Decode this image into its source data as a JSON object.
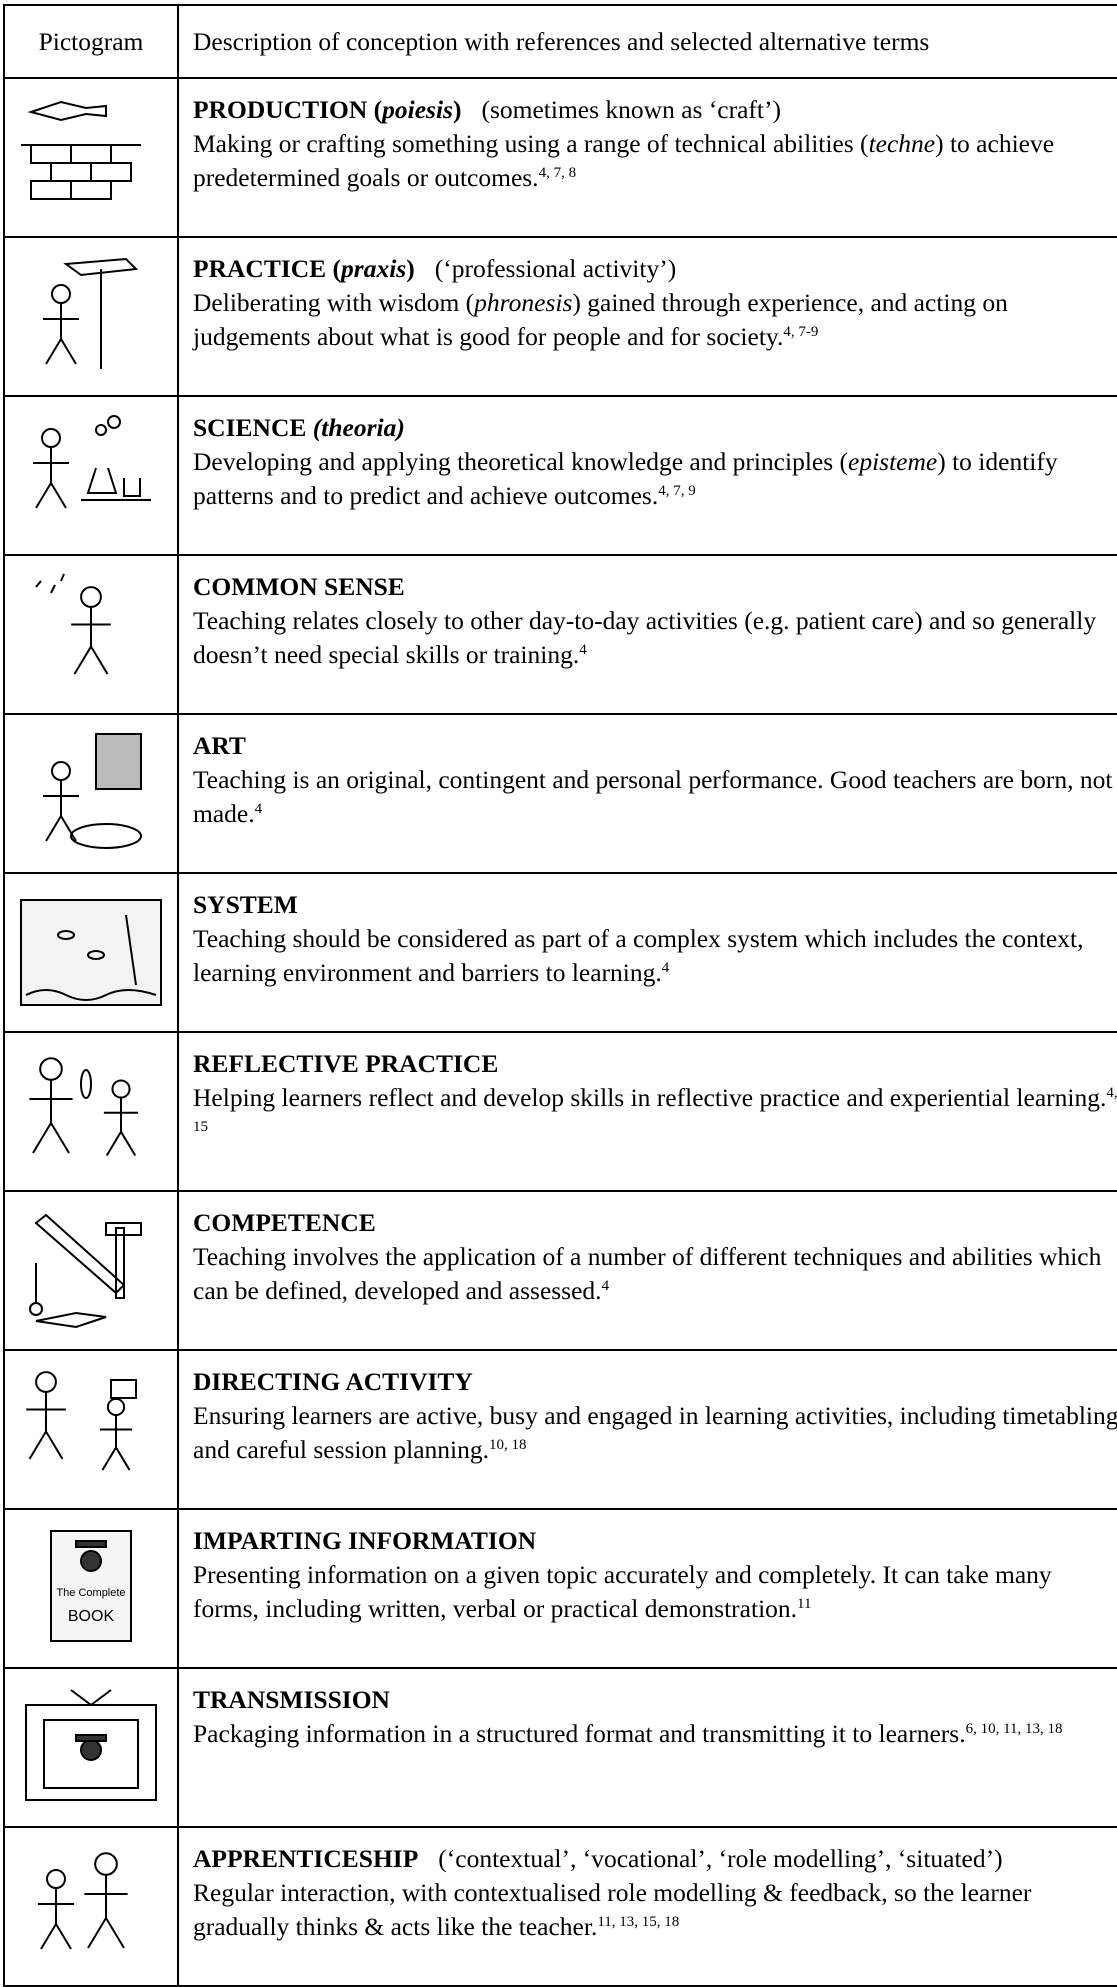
{
  "table": {
    "header": [
      "Pictogram",
      "Description of conception with references and selected alternative terms"
    ],
    "rows": [
      {
        "title": [
          {
            "text": "PRODUCTION ("
          },
          {
            "text": "poiesis",
            "italic": true
          },
          {
            "text": ")"
          }
        ],
        "alt": "(sometimes known as ‘craft’)",
        "description": [
          {
            "text": "Making or crafting something using a range of technical abilities ("
          },
          {
            "text": "techne",
            "italic": true
          },
          {
            "text": ") to achieve predetermined goals or outcomes."
          }
        ],
        "refs": "4, 7, 8"
      },
      {
        "title": [
          {
            "text": "PRACTICE ("
          },
          {
            "text": "praxis",
            "italic": true
          },
          {
            "text": ")"
          }
        ],
        "alt": "(‘professional activity’)",
        "description": [
          {
            "text": "Deliberating with wisdom ("
          },
          {
            "text": "phronesis",
            "italic": true
          },
          {
            "text": ") gained through experience, and acting on judgements about what is good for people and for society."
          }
        ],
        "refs": "4, 7-9"
      },
      {
        "title": [
          {
            "text": "SCIENCE "
          },
          {
            "text": "(theoria)",
            "italic": true
          }
        ],
        "description": [
          {
            "text": "Developing and applying theoretical knowledge and principles ("
          },
          {
            "text": "episteme",
            "italic": true
          },
          {
            "text": ") to identify patterns and to predict and achieve outcomes."
          }
        ],
        "refs": "4, 7, 9"
      },
      {
        "title": [
          {
            "text": "COMMON SENSE"
          }
        ],
        "description": [
          {
            "text": "Teaching relates closely to other day-to-day activities (e.g. patient care) and so generally doesn’t need special skills or training."
          }
        ],
        "refs": "4"
      },
      {
        "title": [
          {
            "text": "ART"
          }
        ],
        "description": [
          {
            "text": "Teaching is an original, contingent and personal performance. Good teachers are born, not made."
          }
        ],
        "refs": "4"
      },
      {
        "title": [
          {
            "text": "SYSTEM"
          }
        ],
        "description": [
          {
            "text": "Teaching should be considered as part of a complex system which includes the context, learning environment and barriers to learning."
          }
        ],
        "refs": "4"
      },
      {
        "title": [
          {
            "text": "REFLECTIVE PRACTICE"
          }
        ],
        "description": [
          {
            "text": "Helping learners reflect and develop skills in reflective practice and experiential learning."
          }
        ],
        "refs": "4, 15"
      },
      {
        "title": [
          {
            "text": "COMPETENCE"
          }
        ],
        "description": [
          {
            "text": "Teaching involves the application of a number of different techniques and abilities which can be defined, developed and assessed."
          }
        ],
        "refs": "4"
      },
      {
        "title": [
          {
            "text": "DIRECTING ACTIVITY"
          }
        ],
        "description": [
          {
            "text": "Ensuring learners are active, busy and engaged in learning activities, including timetabling and careful session planning."
          }
        ],
        "refs": "10, 18"
      },
      {
        "title": [
          {
            "text": "IMPARTING INFORMATION"
          }
        ],
        "pictogram_text": [
          "The Complete",
          "BOOK"
        ],
        "description": [
          {
            "text": "Presenting information on a given topic accurately and completely. It can take many forms, including written, verbal or practical demonstration."
          }
        ],
        "refs": "11"
      },
      {
        "title": [
          {
            "text": "TRANSMISSION"
          }
        ],
        "description": [
          {
            "text": "Packaging information in a structured format and transmitting it to learners."
          }
        ],
        "refs": "6, 10, 11, 13, 18"
      },
      {
        "title": [
          {
            "text": "APPRENTICESHIP"
          }
        ],
        "alt": "(‘contextual’, ‘vocational’, ‘role modelling’, ‘situated’)",
        "description": [
          {
            "text": "Regular interaction, with contextualised role modelling & feedback, so the learner gradually thinks & acts like the teacher."
          }
        ],
        "refs": "11, 13, 15, 18"
      }
    ]
  }
}
